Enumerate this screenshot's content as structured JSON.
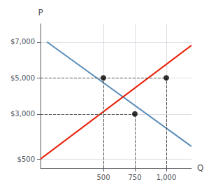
{
  "chart_data": {
    "type": "line",
    "xlabel": "Q",
    "ylabel": "P",
    "xlim": [
      0,
      1200
    ],
    "ylim": [
      0,
      8000
    ],
    "xticks": [
      500,
      750,
      {
        "value": 1000,
        "label": "1,000"
      }
    ],
    "yticks": [
      {
        "value": 500,
        "label": "$500"
      },
      {
        "value": 3000,
        "label": "$3,000"
      },
      {
        "value": 5000,
        "label": "$5,000"
      },
      {
        "value": 7000,
        "label": "$7,000"
      }
    ],
    "grid": true,
    "series": [
      {
        "type": "line",
        "color": "#5B8DB8",
        "x": [
          50,
          1200
        ],
        "values": [
          7000,
          1200
        ]
      },
      {
        "type": "line",
        "color": "#E8220A",
        "x": [
          0,
          1200
        ],
        "values": [
          500,
          6800
        ]
      },
      {
        "type": "scatter",
        "color": "#000000",
        "x": [
          500,
          750,
          1000
        ],
        "values": [
          5000,
          3000,
          5000
        ]
      }
    ]
  }
}
